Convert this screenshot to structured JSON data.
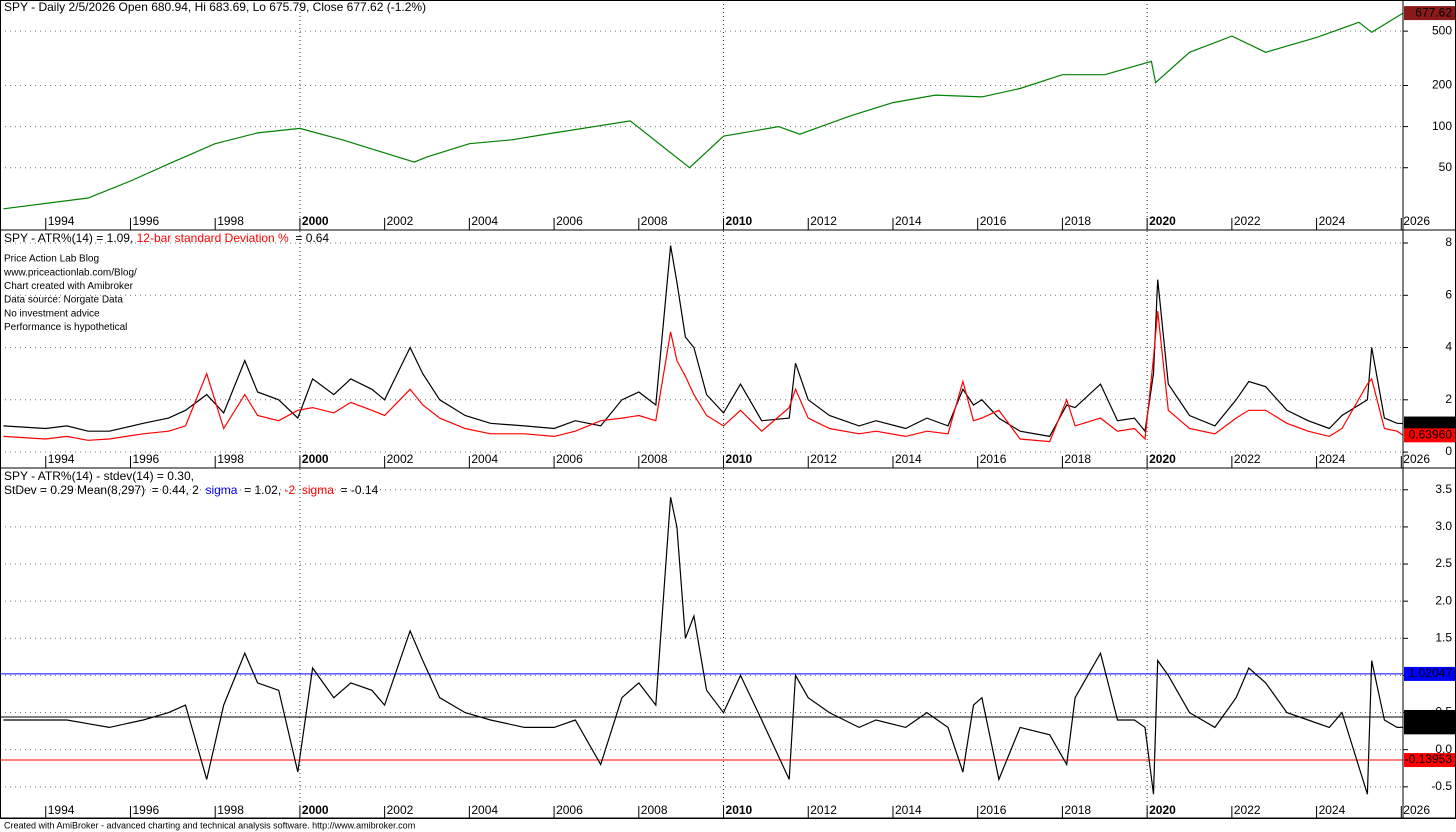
{
  "chart_data": [
    {
      "type": "line",
      "title_lines": [
        [
          {
            "text": "SPY - Daily 2/5/2026 Open 680.94, Hi 683.69, Lo 675.79, Close 677.62 (-1.2%)",
            "color": "#000000"
          }
        ]
      ],
      "log_scale": true,
      "xlim": [
        1992.92,
        2026.04
      ],
      "xticks": [
        1994,
        1996,
        1998,
        2000,
        2002,
        2004,
        2006,
        2008,
        2010,
        2012,
        2014,
        2016,
        2018,
        2020,
        2022,
        2024,
        2026
      ],
      "ylim": [
        17.5,
        845
      ],
      "yticks": [
        50,
        100,
        200,
        500
      ],
      "x": [
        1993.0,
        1995.0,
        1996.0,
        1997.0,
        1998.0,
        1999.0,
        2000.0,
        2001.0,
        2002.7,
        2003.0,
        2004.0,
        2005.0,
        2006.0,
        2007.8,
        2009.2,
        2010.0,
        2011.3,
        2011.8,
        2013.0,
        2014.0,
        2015.0,
        2016.1,
        2017.0,
        2018.0,
        2019.0,
        2020.1,
        2020.2,
        2021.0,
        2022.0,
        2022.8,
        2024.0,
        2025.0,
        2025.3,
        2026.04
      ],
      "series": [
        {
          "color": "#008000",
          "label_color": "#8b1a1a",
          "values": [
            25,
            30,
            40,
            55,
            75,
            90,
            97,
            80,
            55,
            60,
            75,
            80,
            90,
            110,
            50,
            85,
            100,
            88,
            120,
            150,
            170,
            165,
            190,
            240,
            240,
            300,
            210,
            350,
            460,
            350,
            450,
            580,
            490,
            677.62
          ]
        }
      ]
    },
    {
      "type": "line",
      "title_lines": [
        [
          {
            "text": "SPY - ATR%(14) = 1.09, ",
            "color": "#000000"
          },
          {
            "text": "12-bar standard Deviation %",
            "color": "#ff0000"
          },
          {
            "text": "  = 0.64",
            "color": "#000000"
          }
        ]
      ],
      "notes": [
        "Price Action Lab Blog",
        "www.priceactionlab.com/Blog/",
        "Chart created with Amibroker",
        "Data source: Norgate Data",
        "No investment advice",
        "Performance is hypothetical"
      ],
      "xlim": [
        1992.92,
        2026.04
      ],
      "xticks": [
        1994,
        1996,
        1998,
        2000,
        2002,
        2004,
        2006,
        2008,
        2010,
        2012,
        2014,
        2016,
        2018,
        2020,
        2022,
        2024,
        2026
      ],
      "ylim": [
        -0.61,
        8.46
      ],
      "yticks": [
        0,
        2,
        4,
        6,
        8
      ],
      "x": [
        1993.0,
        1994.0,
        1994.5,
        1995.0,
        1995.5,
        1996.3,
        1996.9,
        1997.3,
        1997.8,
        1998.2,
        1998.7,
        1999.0,
        1999.5,
        1999.95,
        2000.3,
        2000.8,
        2001.2,
        2001.7,
        2002.0,
        2002.6,
        2002.9,
        2003.3,
        2003.9,
        2004.5,
        2005.3,
        2006.0,
        2006.5,
        2007.1,
        2007.6,
        2008.0,
        2008.4,
        2008.75,
        2008.9,
        2009.1,
        2009.3,
        2009.6,
        2010.0,
        2010.4,
        2010.9,
        2011.55,
        2011.7,
        2012.0,
        2012.5,
        2013.2,
        2013.6,
        2014.3,
        2014.8,
        2015.3,
        2015.65,
        2015.9,
        2016.1,
        2016.5,
        2017.0,
        2017.7,
        2018.1,
        2018.3,
        2018.9,
        2019.3,
        2019.7,
        2019.95,
        2020.15,
        2020.25,
        2020.5,
        2021.0,
        2021.6,
        2022.1,
        2022.4,
        2022.8,
        2023.3,
        2023.8,
        2024.3,
        2024.6,
        2025.2,
        2025.3,
        2025.6,
        2025.9,
        2026.04
      ],
      "series": [
        {
          "color": "#000000",
          "values": [
            1.0,
            0.9,
            1.0,
            0.8,
            0.8,
            1.1,
            1.3,
            1.6,
            2.2,
            1.5,
            3.5,
            2.3,
            2.0,
            1.3,
            2.8,
            2.2,
            2.8,
            2.4,
            2.0,
            4.0,
            3.0,
            2.0,
            1.4,
            1.1,
            1.0,
            0.9,
            1.2,
            1.0,
            2.0,
            2.3,
            1.8,
            7.9,
            6.5,
            4.4,
            4.0,
            2.2,
            1.5,
            2.6,
            1.2,
            1.3,
            3.4,
            2.0,
            1.4,
            1.0,
            1.2,
            0.9,
            1.3,
            1.0,
            2.4,
            1.8,
            2.0,
            1.3,
            0.8,
            0.6,
            1.8,
            1.7,
            2.6,
            1.2,
            1.3,
            0.8,
            3.0,
            6.6,
            2.6,
            1.4,
            1.0,
            2.0,
            2.7,
            2.5,
            1.6,
            1.2,
            0.9,
            1.4,
            2.0,
            4.0,
            1.3,
            1.1,
            1.09143
          ]
        },
        {
          "color": "#ff0000",
          "last_label": "0.63960",
          "values": [
            0.6,
            0.5,
            0.6,
            0.45,
            0.5,
            0.7,
            0.8,
            1.0,
            3.0,
            0.9,
            2.2,
            1.4,
            1.2,
            1.6,
            1.7,
            1.5,
            1.9,
            1.6,
            1.4,
            2.4,
            1.8,
            1.3,
            0.9,
            0.7,
            0.7,
            0.6,
            0.8,
            1.2,
            1.3,
            1.4,
            1.2,
            4.6,
            3.5,
            2.9,
            2.2,
            1.4,
            1.0,
            1.6,
            0.8,
            1.7,
            2.4,
            1.3,
            0.9,
            0.7,
            0.8,
            0.6,
            0.8,
            0.7,
            2.7,
            1.2,
            1.3,
            1.6,
            0.5,
            0.4,
            2.0,
            1.0,
            1.3,
            0.8,
            0.9,
            0.5,
            3.6,
            5.4,
            1.6,
            0.9,
            0.7,
            1.3,
            1.6,
            1.6,
            1.1,
            0.8,
            0.6,
            0.9,
            2.6,
            2.8,
            0.9,
            0.8,
            0.6396
          ]
        }
      ]
    },
    {
      "type": "line",
      "title_lines": [
        [
          {
            "text": "SPY - ATR%(14) - stdev(14) = 0.30,",
            "color": "#000000"
          }
        ],
        [
          {
            "text": "StDev = 0.29 Mean(8,297)  = 0.44, 2  ",
            "color": "#000000"
          },
          {
            "text": "sigma",
            "color": "#0000ff"
          },
          {
            "text": "  = 1.02, ",
            "color": "#000000"
          },
          {
            "text": "-2  sigma",
            "color": "#ff0000"
          },
          {
            "text": "  = -0.14",
            "color": "#000000"
          }
        ]
      ],
      "xlim": [
        1992.92,
        2026.04
      ],
      "xticks": [
        1994,
        1996,
        1998,
        2000,
        2002,
        2004,
        2006,
        2008,
        2010,
        2012,
        2014,
        2016,
        2018,
        2020,
        2022,
        2024,
        2026
      ],
      "ylim": [
        -0.92,
        3.78
      ],
      "yticks": [
        -0.5,
        {
          "value": 0,
          "label": "0.0"
        },
        0.5,
        {
          "value": 1,
          "label": "1.0"
        },
        1.5,
        {
          "value": 2,
          "label": "2.0"
        },
        2.5,
        {
          "value": 3,
          "label": "3.0"
        },
        3.5
      ],
      "hlines": [
        {
          "value": 1.02047,
          "color": "#0000ff"
        },
        {
          "value": 0.44046,
          "color": "#000000"
        },
        {
          "value": -0.13953,
          "color": "#ff0000"
        }
      ],
      "x": [
        1993.0,
        1994.0,
        1994.5,
        1995.0,
        1995.5,
        1996.3,
        1996.9,
        1997.3,
        1997.8,
        1998.2,
        1998.7,
        1999.0,
        1999.5,
        1999.95,
        2000.3,
        2000.8,
        2001.2,
        2001.7,
        2002.0,
        2002.6,
        2002.9,
        2003.3,
        2003.9,
        2004.5,
        2005.3,
        2006.0,
        2006.5,
        2007.1,
        2007.6,
        2008.0,
        2008.4,
        2008.75,
        2008.9,
        2009.1,
        2009.3,
        2009.6,
        2010.0,
        2010.4,
        2010.9,
        2011.55,
        2011.7,
        2012.0,
        2012.5,
        2013.2,
        2013.6,
        2014.3,
        2014.8,
        2015.3,
        2015.65,
        2015.9,
        2016.1,
        2016.5,
        2017.0,
        2017.7,
        2018.1,
        2018.3,
        2018.9,
        2019.3,
        2019.7,
        2019.95,
        2020.15,
        2020.25,
        2020.5,
        2021.0,
        2021.6,
        2022.1,
        2022.4,
        2022.8,
        2023.3,
        2023.8,
        2024.3,
        2024.6,
        2025.2,
        2025.3,
        2025.6,
        2025.9,
        2026.04
      ],
      "series": [
        {
          "color": "#000000",
          "values": [
            0.4,
            0.4,
            0.4,
            0.35,
            0.3,
            0.4,
            0.5,
            0.6,
            -0.4,
            0.6,
            1.3,
            0.9,
            0.8,
            -0.3,
            1.1,
            0.7,
            0.9,
            0.8,
            0.6,
            1.6,
            1.2,
            0.7,
            0.5,
            0.4,
            0.3,
            0.3,
            0.4,
            -0.2,
            0.7,
            0.9,
            0.6,
            3.4,
            3.0,
            1.5,
            1.8,
            0.8,
            0.5,
            1.0,
            0.4,
            -0.4,
            1.0,
            0.7,
            0.5,
            0.3,
            0.4,
            0.3,
            0.5,
            0.3,
            -0.3,
            0.6,
            0.7,
            -0.4,
            0.3,
            0.2,
            -0.2,
            0.7,
            1.3,
            0.4,
            0.4,
            0.3,
            -0.6,
            1.2,
            1.0,
            0.5,
            0.3,
            0.7,
            1.1,
            0.9,
            0.5,
            0.4,
            0.3,
            0.5,
            -0.6,
            1.2,
            0.4,
            0.3,
            0.30099
          ]
        }
      ]
    }
  ],
  "footer": "Created with AmiBroker - advanced charting and technical analysis software. http://www.amibroker.com"
}
